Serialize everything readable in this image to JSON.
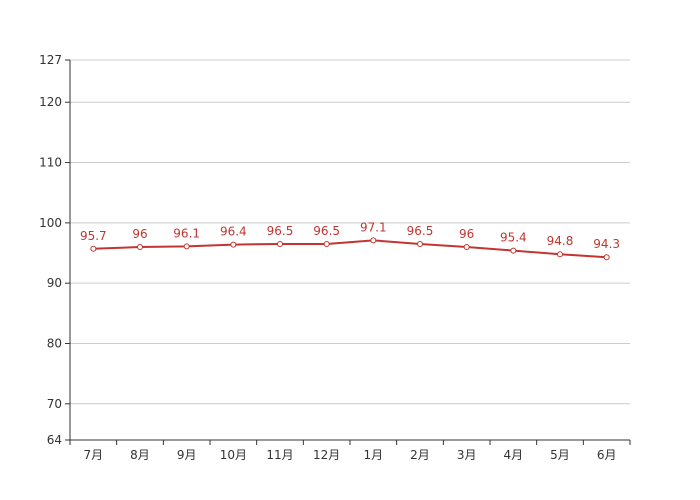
{
  "chart_data": {
    "type": "line",
    "categories": [
      "7月",
      "8月",
      "9月",
      "10月",
      "11月",
      "12月",
      "1月",
      "2月",
      "3月",
      "4月",
      "5月",
      "6月"
    ],
    "series": [
      {
        "values": [
          95.7,
          96,
          96.1,
          96.4,
          96.5,
          96.5,
          97.1,
          96.5,
          96,
          95.4,
          94.8,
          94.3
        ]
      }
    ],
    "ylim": [
      64,
      127
    ],
    "y_ticks": [
      64,
      70,
      80,
      90,
      100,
      110,
      120,
      127
    ],
    "grid": true,
    "data_labels": true,
    "color": "#c23531"
  }
}
